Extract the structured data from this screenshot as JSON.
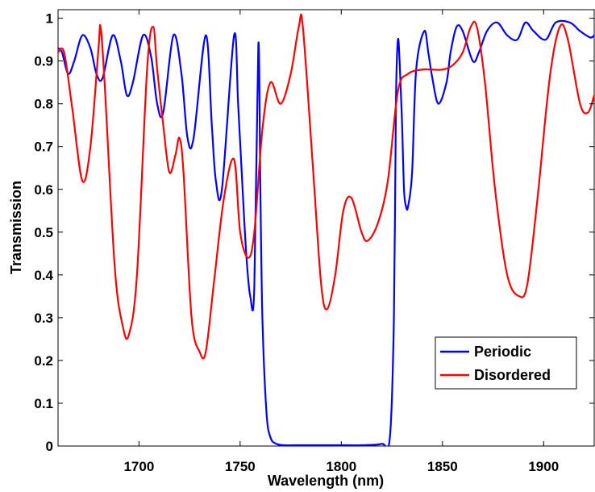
{
  "chart_data": {
    "type": "line",
    "title": "",
    "xlabel": "Wavelength (nm)",
    "ylabel": "Transmission",
    "xlim": [
      1660,
      1925
    ],
    "ylim": [
      0,
      1.02
    ],
    "x_ticks": [
      1700,
      1750,
      1800,
      1850,
      1900
    ],
    "x_tick_labels": [
      "1700",
      "1750",
      "1800",
      "1850",
      "1900"
    ],
    "y_ticks": [
      0,
      0.1,
      0.2,
      0.3,
      0.4,
      0.5,
      0.6,
      0.7,
      0.8,
      0.9,
      1
    ],
    "y_tick_labels": [
      "0",
      "0.1",
      "0.2",
      "0.3",
      "0.4",
      "0.5",
      "0.6",
      "0.7",
      "0.8",
      "0.9",
      "1"
    ],
    "grid": false,
    "legend_position": "bottom-right",
    "series": [
      {
        "name": "Periodic",
        "color": "#0000ff",
        "x": [
          1660,
          1662,
          1665,
          1668,
          1672,
          1676,
          1679,
          1682,
          1687,
          1691,
          1694,
          1697,
          1702,
          1706,
          1709,
          1712,
          1717,
          1721,
          1724,
          1727,
          1733,
          1736,
          1738,
          1741,
          1747,
          1749,
          1751,
          1753,
          1755,
          1757,
          1759,
          1760,
          1761,
          1763,
          1765,
          1768,
          1772,
          1780,
          1790,
          1800,
          1810,
          1820,
          1824,
          1826,
          1827,
          1828,
          1829,
          1830,
          1831,
          1832,
          1833,
          1835,
          1837,
          1841,
          1843,
          1845,
          1848,
          1852,
          1854,
          1857,
          1860,
          1865,
          1868,
          1872,
          1877,
          1882,
          1887,
          1891,
          1895,
          1901,
          1906,
          1913,
          1918,
          1923,
          1925
        ],
        "y": [
          0.93,
          0.92,
          0.87,
          0.9,
          0.96,
          0.93,
          0.87,
          0.86,
          0.96,
          0.9,
          0.82,
          0.85,
          0.96,
          0.91,
          0.8,
          0.78,
          0.96,
          0.87,
          0.72,
          0.72,
          0.96,
          0.75,
          0.62,
          0.6,
          0.96,
          0.8,
          0.62,
          0.45,
          0.35,
          0.37,
          0.94,
          0.6,
          0.3,
          0.08,
          0.02,
          0.005,
          0.002,
          0.002,
          0.002,
          0.002,
          0.002,
          0.005,
          0.02,
          0.3,
          0.8,
          0.95,
          0.88,
          0.76,
          0.6,
          0.56,
          0.56,
          0.64,
          0.88,
          0.97,
          0.92,
          0.86,
          0.8,
          0.85,
          0.92,
          0.98,
          0.97,
          0.9,
          0.92,
          0.97,
          0.99,
          0.96,
          0.95,
          0.99,
          0.97,
          0.95,
          0.99,
          0.99,
          0.97,
          0.955,
          0.96
        ]
      },
      {
        "name": "Disordered",
        "color": "#ff0000",
        "x": [
          1660,
          1663,
          1667,
          1672,
          1676,
          1680,
          1681,
          1683,
          1688,
          1692,
          1695,
          1699,
          1704,
          1707,
          1709,
          1712,
          1715,
          1718,
          1720,
          1722,
          1726,
          1730,
          1733,
          1737,
          1742,
          1747,
          1750,
          1754,
          1757,
          1761,
          1765,
          1770,
          1775,
          1779,
          1781,
          1786,
          1790,
          1793,
          1797,
          1801,
          1805,
          1810,
          1813,
          1818,
          1823,
          1828,
          1833,
          1840,
          1845,
          1850,
          1855,
          1860,
          1864,
          1867,
          1871,
          1876,
          1882,
          1888,
          1892,
          1897,
          1903,
          1908,
          1912,
          1918,
          1922,
          1925
        ],
        "y": [
          0.92,
          0.92,
          0.79,
          0.62,
          0.7,
          0.93,
          0.98,
          0.85,
          0.42,
          0.28,
          0.26,
          0.4,
          0.88,
          0.98,
          0.88,
          0.75,
          0.64,
          0.68,
          0.72,
          0.64,
          0.3,
          0.22,
          0.22,
          0.38,
          0.58,
          0.67,
          0.5,
          0.44,
          0.5,
          0.74,
          0.85,
          0.8,
          0.87,
          0.98,
          0.98,
          0.65,
          0.38,
          0.32,
          0.4,
          0.55,
          0.58,
          0.5,
          0.48,
          0.52,
          0.62,
          0.83,
          0.87,
          0.88,
          0.88,
          0.88,
          0.89,
          0.92,
          0.98,
          0.98,
          0.85,
          0.6,
          0.4,
          0.35,
          0.38,
          0.58,
          0.86,
          0.98,
          0.95,
          0.8,
          0.78,
          0.82
        ]
      }
    ]
  }
}
